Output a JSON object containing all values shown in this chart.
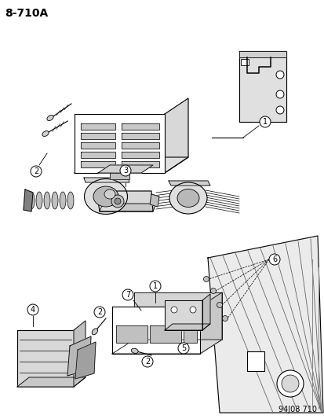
{
  "title": "8-710A",
  "footer": "94J08 710",
  "bg_color": "#ffffff",
  "fg_color": "#000000",
  "figsize": [
    4.14,
    5.33
  ],
  "dpi": 100,
  "title_fontsize": 10,
  "footer_fontsize": 7,
  "label_fontsize": 7,
  "lw": 0.8
}
